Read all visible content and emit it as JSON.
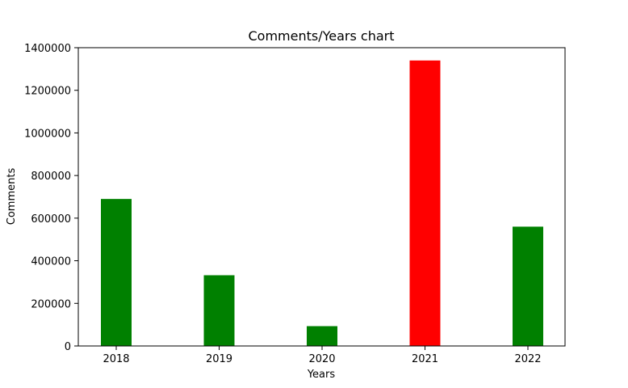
{
  "chart_data": {
    "type": "bar",
    "title": "Comments/Years chart",
    "xlabel": "Years",
    "ylabel": "Comments",
    "categories": [
      "2018",
      "2019",
      "2020",
      "2021",
      "2022"
    ],
    "values": [
      690000,
      332000,
      93000,
      1340000,
      560000
    ],
    "bar_colors": [
      "#008000",
      "#008000",
      "#008000",
      "#ff0000",
      "#008000"
    ],
    "ylim": [
      0,
      1400000
    ],
    "yticks": [
      0,
      200000,
      400000,
      600000,
      800000,
      1000000,
      1200000,
      1400000
    ],
    "ytick_labels": [
      "0",
      "200000",
      "400000",
      "600000",
      "800000",
      "1000000",
      "1200000",
      "1400000"
    ],
    "grid": false,
    "legend": false
  }
}
